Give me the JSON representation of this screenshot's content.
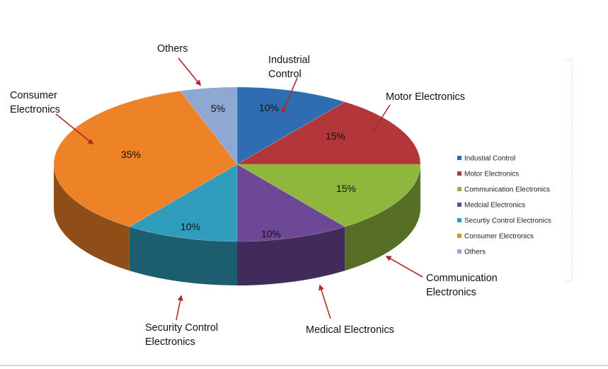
{
  "chart_data": {
    "type": "pie",
    "three_d": true,
    "legend_position": "right",
    "legend": [
      {
        "label": "Industial Control",
        "color": "#2f6db3"
      },
      {
        "label": "Motor Electronics",
        "color": "#b3373a"
      },
      {
        "label": "Communication Electronics",
        "color": "#8fb73e"
      },
      {
        "label": "Medcial Electronics",
        "color": "#6d4896"
      },
      {
        "label": "Securtiy Control Electronics",
        "color": "#2f9dbb"
      },
      {
        "label": "Consumer Electronics",
        "color": "#ee8227"
      },
      {
        "label": "Others",
        "color": "#8ea7d3"
      }
    ],
    "slices": [
      {
        "value": 10,
        "label": "10%",
        "callout": [
          "Industrial",
          "Control"
        ]
      },
      {
        "value": 15,
        "label": "15%",
        "callout": [
          "Motor Electronics"
        ]
      },
      {
        "value": 15,
        "label": "15%",
        "callout": [
          "Communication",
          "Electronics"
        ]
      },
      {
        "value": 10,
        "label": "10%",
        "callout": [
          "Medical Electronics"
        ]
      },
      {
        "value": 10,
        "label": "10%",
        "callout": [
          "Security Control",
          "Electronics"
        ]
      },
      {
        "value": 35,
        "label": "35%",
        "callout": [
          "Consumer",
          "Electronics"
        ]
      },
      {
        "value": 5,
        "label": "5%",
        "callout": [
          "Others"
        ]
      }
    ]
  }
}
